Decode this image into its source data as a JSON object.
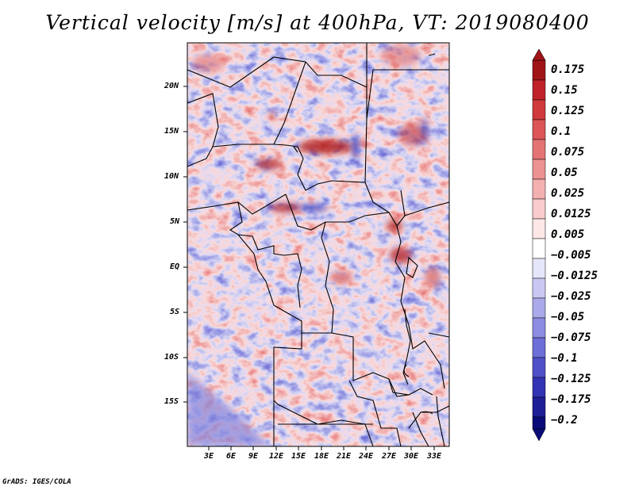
{
  "title": "Vertical velocity [m/s] at 400hPa, VT: 2019080400",
  "credit": "GrADS: IGES/COLA",
  "map": {
    "variable": "vertical velocity",
    "level": "400hPa",
    "lon_range": [
      -1,
      35
    ],
    "lat_range": [
      -19.5,
      25
    ]
  },
  "lat_labels": [
    "20N",
    "15N",
    "10N",
    "5N",
    "EQ",
    "5S",
    "10S",
    "15S"
  ],
  "lon_labels": [
    "3E",
    "6E",
    "9E",
    "12E",
    "15E",
    "18E",
    "21E",
    "24E",
    "27E",
    "30E",
    "33E"
  ],
  "colorbar": {
    "labels": [
      "0.175",
      "0.15",
      "0.125",
      "0.1",
      "0.075",
      "0.05",
      "0.025",
      "0.0125",
      "0.005",
      "−0.005",
      "−0.0125",
      "−0.025",
      "−0.05",
      "−0.075",
      "−0.1",
      "−0.125",
      "−0.175",
      "−0.2"
    ],
    "colors": [
      "#a01418",
      "#c0222a",
      "#d03a3c",
      "#dc5656",
      "#e47474",
      "#ec9292",
      "#f4b0b0",
      "#f8cccc",
      "#fce6e6",
      "#ffffff",
      "#e6e6fa",
      "#c8c8f2",
      "#aaaaea",
      "#8c8ce2",
      "#6e6ed8",
      "#5050c8",
      "#3232b4",
      "#1e1e96",
      "#0a0a78"
    ]
  }
}
